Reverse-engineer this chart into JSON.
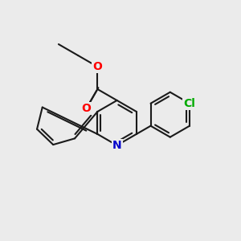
{
  "bg_color": "#ebebeb",
  "bond_color": "#1a1a1a",
  "bond_width": 1.5,
  "atom_colors": {
    "O": "#ff0000",
    "N": "#0000cc",
    "Cl": "#00aa00",
    "C": "#1a1a1a"
  },
  "font_size_atom": 10,
  "font_size_cl": 10
}
